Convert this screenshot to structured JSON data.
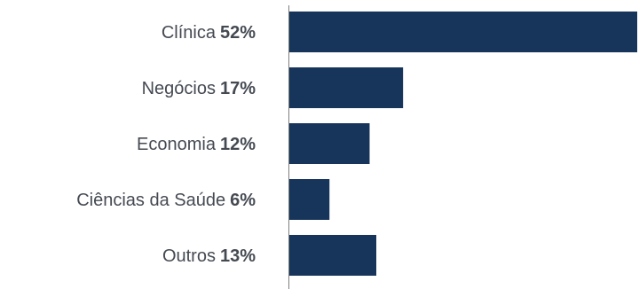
{
  "chart_data": {
    "type": "bar",
    "orientation": "horizontal",
    "categories": [
      "Clínica",
      "Negócios",
      "Economia",
      "Ciências da Saúde",
      "Outros"
    ],
    "values": [
      52,
      17,
      12,
      6,
      13
    ],
    "value_labels": [
      "52%",
      "17%",
      "12%",
      "6%",
      "13%"
    ],
    "unit": "%",
    "xlim": [
      0,
      52
    ],
    "grid": false,
    "legend": "none",
    "colors": {
      "bar": "#17345b",
      "axis": "#7f7f7f",
      "label": "#454a52"
    }
  }
}
